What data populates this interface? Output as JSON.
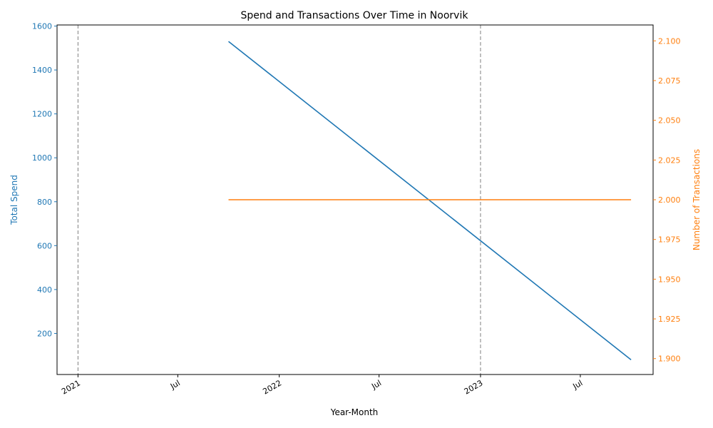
{
  "chart_data": {
    "type": "line",
    "title": "Spend and Transactions Over Time in Noorvik",
    "xlabel": "Year-Month",
    "ylabel_left": "Total Spend",
    "ylabel_right": "Number of Transactions",
    "x_range": [
      "2020-11-24",
      "2023-11-10"
    ],
    "x_ticks": [
      {
        "date": "2021-01-01",
        "label": "2021"
      },
      {
        "date": "2021-07-01",
        "label": "Jul"
      },
      {
        "date": "2022-01-01",
        "label": "2022"
      },
      {
        "date": "2022-07-01",
        "label": "Jul"
      },
      {
        "date": "2023-01-01",
        "label": "2023"
      },
      {
        "date": "2023-07-01",
        "label": "Jul"
      }
    ],
    "vlines": [
      "2021-01-01",
      "2023-01-01"
    ],
    "y_left": {
      "range": [
        13,
        1605
      ],
      "ticks": [
        200,
        400,
        600,
        800,
        1000,
        1200,
        1400,
        1600
      ],
      "tick_labels": [
        "200",
        "400",
        "600",
        "800",
        "1000",
        "1200",
        "1400",
        "1600"
      ]
    },
    "y_right": {
      "range": [
        1.89,
        2.11
      ],
      "ticks": [
        1.9,
        1.925,
        1.95,
        1.975,
        2.0,
        2.025,
        2.05,
        2.075,
        2.1
      ],
      "tick_labels": [
        "1.900",
        "1.925",
        "1.950",
        "1.975",
        "2.000",
        "2.025",
        "2.050",
        "2.075",
        "2.100"
      ]
    },
    "series": [
      {
        "axis": "left",
        "color": "#1f77b4",
        "x": [
          "2021-10-01",
          "2023-10-01"
        ],
        "y": [
          1530,
          80
        ]
      },
      {
        "axis": "right",
        "color": "#ff7f0e",
        "x": [
          "2021-10-01",
          "2023-10-01"
        ],
        "y": [
          2.0,
          2.0
        ]
      }
    ],
    "grid": false
  }
}
